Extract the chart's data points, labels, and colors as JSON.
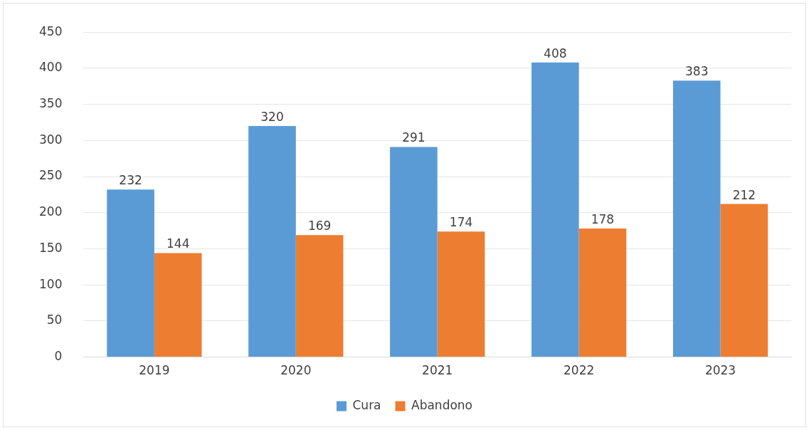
{
  "chart_data": {
    "type": "bar",
    "categories": [
      "2019",
      "2020",
      "2021",
      "2022",
      "2023"
    ],
    "series": [
      {
        "name": "Cura",
        "color": "#5b9bd5",
        "values": [
          232,
          320,
          291,
          408,
          383
        ]
      },
      {
        "name": "Abandono",
        "color": "#ed7d31",
        "values": [
          144,
          169,
          174,
          178,
          212
        ]
      }
    ],
    "ylim": [
      0,
      450
    ],
    "yticks": [
      0,
      50,
      100,
      150,
      200,
      250,
      300,
      350,
      400,
      450
    ],
    "grid": "y",
    "legend": "bottom",
    "data_labels": true
  }
}
